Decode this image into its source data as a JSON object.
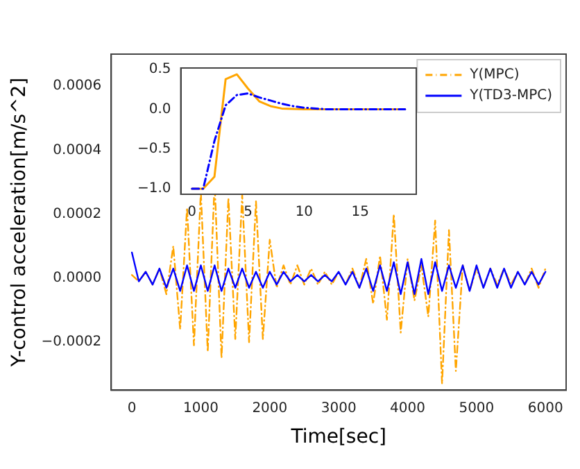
{
  "chart_data": [
    {
      "type": "line",
      "xlabel": "Time[sec]",
      "ylabel": "Y-control acceleration[m/s^2]",
      "legend": "top right",
      "grid": false,
      "marker": "none",
      "xlim": [
        -300,
        6300
      ],
      "xticks": [
        0,
        1000,
        2000,
        3000,
        4000,
        5000,
        6000
      ],
      "ylim": [
        -0.00035,
        0.0007
      ],
      "yticks": [
        {
          "value": -0.0002,
          "label": "−0.0002"
        },
        {
          "value": 0,
          "label": "0.0000"
        },
        0.0002,
        0.0004,
        0.0006
      ],
      "x": [
        0,
        100,
        200,
        300,
        400,
        500,
        600,
        700,
        800,
        900,
        1000,
        1100,
        1200,
        1300,
        1400,
        1500,
        1600,
        1700,
        1800,
        1900,
        2000,
        2100,
        2200,
        2300,
        2400,
        2500,
        2600,
        2700,
        2800,
        2900,
        3000,
        3100,
        3200,
        3300,
        3400,
        3500,
        3600,
        3700,
        3800,
        3900,
        4000,
        4100,
        4200,
        4300,
        4400,
        4500,
        4600,
        4700,
        4800,
        4900,
        5000,
        5100,
        5200,
        5300,
        5400,
        5500,
        5600,
        5700,
        5800,
        5900,
        6000
      ],
      "series": [
        {
          "name": "Y(MPC)",
          "color": "#ffa500",
          "line_style": "dashed",
          "values": [
            1e-05,
            -1e-05,
            2e-05,
            -2e-05,
            3e-05,
            -5e-05,
            0.0001,
            -0.00016,
            0.00022,
            -0.00021,
            0.00027,
            -0.00023,
            0.0003,
            -0.00025,
            0.00025,
            -0.00019,
            0.00026,
            -0.0002,
            0.00024,
            -0.00019,
            0.00012,
            -3e-05,
            4e-05,
            -2e-05,
            4e-05,
            -2e-05,
            3e-05,
            -2e-05,
            2e-05,
            -2e-05,
            2e-05,
            -2e-05,
            3e-05,
            -3e-05,
            6e-05,
            -8e-05,
            7e-05,
            -0.00013,
            0.0002,
            -0.00017,
            6e-05,
            -7e-05,
            4e-05,
            -0.00012,
            0.00018,
            -0.00033,
            0.00015,
            -0.00029,
            4e-05,
            -4e-05,
            3e-05,
            -3e-05,
            3e-05,
            -2e-05,
            3e-05,
            -2e-05,
            2e-05,
            -2e-05,
            3e-05,
            -3e-05,
            3e-05
          ]
        },
        {
          "name": "Y(TD3-MPC)",
          "color": "#0000ff",
          "line_style": "solid",
          "values": [
            8e-05,
            -1e-05,
            2e-05,
            -2e-05,
            3e-05,
            -3e-05,
            3e-05,
            -4e-05,
            4e-05,
            -4e-05,
            4e-05,
            -4e-05,
            4e-05,
            -4e-05,
            3e-05,
            -3e-05,
            3e-05,
            -3e-05,
            2e-05,
            -3e-05,
            2e-05,
            -2e-05,
            2e-05,
            -1e-05,
            1e-05,
            -1e-05,
            1e-05,
            -1e-05,
            1e-05,
            -1e-05,
            2e-05,
            -2e-05,
            2e-05,
            -3e-05,
            3e-05,
            -4e-05,
            4e-05,
            -4e-05,
            5e-05,
            -5e-05,
            5e-05,
            -5e-05,
            6e-05,
            -5e-05,
            5e-05,
            -4e-05,
            4e-05,
            -3e-05,
            4e-05,
            -4e-05,
            4e-05,
            -3e-05,
            3e-05,
            -3e-05,
            3e-05,
            -3e-05,
            2e-05,
            -2e-05,
            2e-05,
            -2e-05,
            2e-05
          ]
        }
      ]
    },
    {
      "type": "line",
      "grid": false,
      "marker": "none",
      "legend": false,
      "xlim": [
        -1,
        20
      ],
      "xticks": [
        0,
        5,
        10,
        15
      ],
      "ylim": [
        -1.07,
        0.52
      ],
      "yticks": [
        {
          "value": -1,
          "label": "−1.0"
        },
        {
          "value": -0.5,
          "label": "−0.5"
        },
        {
          "value": 0,
          "label": "0.0"
        },
        0.5
      ],
      "series": [
        {
          "color": "#ffa500",
          "line_style": "solid",
          "x": [
            0,
            1,
            2,
            3,
            4,
            5,
            6,
            7,
            8,
            10,
            19
          ],
          "values": [
            -1,
            -1,
            -0.85,
            0.38,
            0.44,
            0.26,
            0.1,
            0.04,
            0.01,
            0,
            0
          ]
        },
        {
          "color": "#0000ff",
          "line_style": "dashed",
          "x": [
            0,
            1,
            2,
            3,
            4,
            5,
            6,
            7,
            8,
            9,
            10,
            12,
            19
          ],
          "values": [
            -1,
            -1,
            -0.4,
            0.05,
            0.18,
            0.2,
            0.15,
            0.11,
            0.07,
            0.04,
            0.02,
            0,
            0
          ]
        }
      ]
    }
  ]
}
